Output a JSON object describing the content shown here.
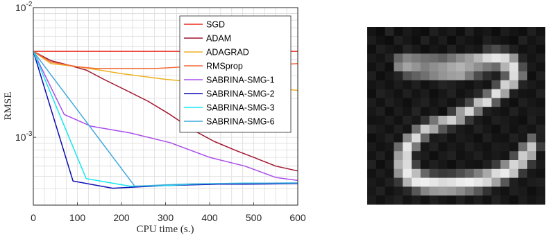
{
  "chart_data": {
    "type": "line",
    "xlabel": "CPU time (s.)",
    "ylabel": "RMSE",
    "xlim": [
      0,
      600
    ],
    "ylim": [
      0.0003,
      0.01
    ],
    "yscale": "log",
    "grid": true,
    "legend_position": "top-right",
    "x_ticks": [
      0,
      100,
      200,
      300,
      400,
      500,
      600
    ],
    "x_tick_labels": [
      "0",
      "100",
      "200",
      "300",
      "400",
      "500",
      "600"
    ],
    "y_ticks": [
      0.01,
      0.001
    ],
    "y_tick_labels": [
      {
        "base": "10",
        "exp": "-2"
      },
      {
        "base": "10",
        "exp": "-3"
      }
    ],
    "series": [
      {
        "name": "SGD",
        "color": "#e8291c",
        "x": [
          0,
          600
        ],
        "y": [
          0.0046,
          0.0046
        ]
      },
      {
        "name": "ADAM",
        "color": "#a2142f",
        "x": [
          0,
          40,
          80,
          120,
          160,
          200,
          260,
          310,
          360,
          410,
          460,
          500,
          550,
          600
        ],
        "y": [
          0.0046,
          0.0039,
          0.0036,
          0.0033,
          0.0028,
          0.0024,
          0.0019,
          0.0015,
          0.00115,
          0.00093,
          0.00079,
          0.0007,
          0.0006,
          0.00055
        ]
      },
      {
        "name": "ADAGRAD",
        "color": "#edb120",
        "x": [
          0,
          40,
          100,
          150,
          200,
          300,
          400,
          500,
          600
        ],
        "y": [
          0.0046,
          0.0037,
          0.0035,
          0.0033,
          0.0031,
          0.0028,
          0.0026,
          0.00245,
          0.0023
        ]
      },
      {
        "name": "RMSprop",
        "color": "#f26b3a",
        "x": [
          0,
          40,
          100,
          140,
          200,
          280,
          350,
          420,
          480,
          540,
          600
        ],
        "y": [
          0.0046,
          0.0038,
          0.0035,
          0.0034,
          0.0034,
          0.0034,
          0.0035,
          0.0036,
          0.0036,
          0.0036,
          0.0037
        ]
      },
      {
        "name": "SABRINA-SMG-1",
        "color": "#a94ee8",
        "x": [
          0,
          70,
          130,
          220,
          310,
          400,
          480,
          550,
          600
        ],
        "y": [
          0.0046,
          0.0015,
          0.00122,
          0.00108,
          0.00091,
          0.0007,
          0.0006,
          0.00049,
          0.000465
        ]
      },
      {
        "name": "SABRINA-SMG-2",
        "color": "#0a0ab4",
        "x": [
          0,
          90,
          180,
          240,
          300,
          360,
          420,
          480,
          540,
          600
        ],
        "y": [
          0.0046,
          0.00046,
          0.000405,
          0.000415,
          0.000425,
          0.00043,
          0.000435,
          0.000435,
          0.000437,
          0.00044
        ]
      },
      {
        "name": "SABRINA-SMG-3",
        "color": "#11e8ee",
        "x": [
          0,
          120,
          220,
          300,
          360,
          420,
          480,
          540,
          600
        ],
        "y": [
          0.0046,
          0.00048,
          0.00042,
          0.000425,
          0.000435,
          0.00044,
          0.000443,
          0.000443,
          0.000445
        ]
      },
      {
        "name": "SABRINA-SMG-6",
        "color": "#3fa9dc",
        "x": [
          0,
          230,
          300,
          360,
          420,
          480,
          540,
          600
        ],
        "y": [
          0.0046,
          0.00042,
          0.00043,
          0.000437,
          0.00044,
          0.000442,
          0.000443,
          0.000445
        ]
      }
    ]
  },
  "image_panel": {
    "grid_size": 20,
    "pixels": [
      [
        0.08,
        0.05,
        0.14,
        0.06,
        0.1,
        0.07,
        0.05,
        0.12,
        0.08,
        0.1,
        0.06,
        0.13,
        0.07,
        0.09,
        0.05,
        0.11,
        0.08,
        0.06,
        0.12,
        0.07
      ],
      [
        0.11,
        0.07,
        0.05,
        0.12,
        0.09,
        0.06,
        0.13,
        0.07,
        0.11,
        0.05,
        0.1,
        0.08,
        0.06,
        0.12,
        0.09,
        0.07,
        0.05,
        0.13,
        0.08,
        0.1
      ],
      [
        0.06,
        0.12,
        0.09,
        0.07,
        0.14,
        0.1,
        0.06,
        0.09,
        0.07,
        0.13,
        0.08,
        0.11,
        0.09,
        0.24,
        0.3,
        0.22,
        0.12,
        0.07,
        0.09,
        0.06
      ],
      [
        0.1,
        0.08,
        0.13,
        0.4,
        0.52,
        0.48,
        0.44,
        0.42,
        0.38,
        0.46,
        0.55,
        0.62,
        0.72,
        0.85,
        0.9,
        0.86,
        0.6,
        0.14,
        0.08,
        0.11
      ],
      [
        0.07,
        0.11,
        0.06,
        0.52,
        0.64,
        0.58,
        0.5,
        0.56,
        0.6,
        0.66,
        0.7,
        0.64,
        0.56,
        0.48,
        0.42,
        0.7,
        0.88,
        0.3,
        0.1,
        0.07
      ],
      [
        0.12,
        0.06,
        0.09,
        0.14,
        0.32,
        0.38,
        0.44,
        0.52,
        0.58,
        0.62,
        0.64,
        0.48,
        0.3,
        0.18,
        0.12,
        0.36,
        0.86,
        0.44,
        0.06,
        0.12
      ],
      [
        0.08,
        0.1,
        0.07,
        0.11,
        0.08,
        0.12,
        0.07,
        0.1,
        0.14,
        0.12,
        0.09,
        0.07,
        0.11,
        0.08,
        0.3,
        0.82,
        0.7,
        0.14,
        0.1,
        0.08
      ],
      [
        0.06,
        0.13,
        0.1,
        0.07,
        0.12,
        0.08,
        0.11,
        0.06,
        0.09,
        0.13,
        0.07,
        0.1,
        0.16,
        0.42,
        0.88,
        0.64,
        0.12,
        0.08,
        0.07,
        0.13
      ],
      [
        0.11,
        0.07,
        0.12,
        0.09,
        0.06,
        0.1,
        0.13,
        0.08,
        0.11,
        0.07,
        0.12,
        0.28,
        0.74,
        0.86,
        0.36,
        0.1,
        0.06,
        0.12,
        0.09,
        0.07
      ],
      [
        0.09,
        0.12,
        0.06,
        0.11,
        0.08,
        0.14,
        0.07,
        0.1,
        0.06,
        0.24,
        0.62,
        0.84,
        0.46,
        0.12,
        0.09,
        0.07,
        0.13,
        0.08,
        0.11,
        0.1
      ],
      [
        0.07,
        0.08,
        0.11,
        0.07,
        0.13,
        0.09,
        0.2,
        0.46,
        0.7,
        0.82,
        0.6,
        0.22,
        0.1,
        0.07,
        0.12,
        0.1,
        0.08,
        0.06,
        0.12,
        0.08
      ],
      [
        0.12,
        0.1,
        0.07,
        0.12,
        0.08,
        0.44,
        0.8,
        0.66,
        0.34,
        0.18,
        0.1,
        0.08,
        0.13,
        0.09,
        0.06,
        0.11,
        0.07,
        0.1,
        0.08,
        0.13
      ],
      [
        0.06,
        0.09,
        0.13,
        0.08,
        0.54,
        0.86,
        0.4,
        0.1,
        0.12,
        0.07,
        0.11,
        0.09,
        0.06,
        0.12,
        0.08,
        0.07,
        0.13,
        0.09,
        0.4,
        0.12
      ],
      [
        0.1,
        0.07,
        0.09,
        0.42,
        0.9,
        0.48,
        0.09,
        0.13,
        0.07,
        0.1,
        0.08,
        0.12,
        0.09,
        0.07,
        0.11,
        0.1,
        0.08,
        0.44,
        0.78,
        0.24
      ],
      [
        0.08,
        0.12,
        0.07,
        0.62,
        0.84,
        0.14,
        0.11,
        0.06,
        0.1,
        0.13,
        0.07,
        0.09,
        0.12,
        0.08,
        0.1,
        0.08,
        0.3,
        0.8,
        0.66,
        0.08
      ],
      [
        0.13,
        0.06,
        0.1,
        0.7,
        0.86,
        0.26,
        0.08,
        0.12,
        0.09,
        0.06,
        0.11,
        0.08,
        0.07,
        0.12,
        0.24,
        0.54,
        0.84,
        0.72,
        0.22,
        0.1
      ],
      [
        0.07,
        0.11,
        0.08,
        0.58,
        0.92,
        0.74,
        0.4,
        0.26,
        0.22,
        0.24,
        0.3,
        0.38,
        0.5,
        0.66,
        0.86,
        0.92,
        0.76,
        0.22,
        0.09,
        0.07
      ],
      [
        0.1,
        0.08,
        0.12,
        0.22,
        0.7,
        0.92,
        0.94,
        0.9,
        0.86,
        0.88,
        0.92,
        0.94,
        0.9,
        0.84,
        0.64,
        0.34,
        0.12,
        0.08,
        0.11,
        0.12
      ],
      [
        0.09,
        0.13,
        0.07,
        0.1,
        0.16,
        0.34,
        0.52,
        0.6,
        0.62,
        0.6,
        0.54,
        0.46,
        0.34,
        0.2,
        0.1,
        0.07,
        0.12,
        0.1,
        0.06,
        0.09
      ],
      [
        0.11,
        0.07,
        0.1,
        0.13,
        0.08,
        0.11,
        0.07,
        0.12,
        0.09,
        0.07,
        0.12,
        0.08,
        0.11,
        0.07,
        0.13,
        0.09,
        0.06,
        0.11,
        0.08,
        0.1
      ]
    ]
  }
}
